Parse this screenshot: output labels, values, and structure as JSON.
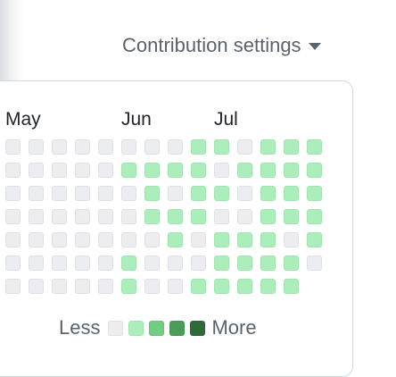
{
  "header": {
    "contribution_settings_label": "Contribution settings"
  },
  "months": [
    "May",
    "Jun",
    "Jul"
  ],
  "legend": {
    "less_label": "Less",
    "more_label": "More",
    "levels": [
      0,
      1,
      2,
      3,
      4
    ]
  },
  "colors": {
    "level_0": "#ebedf0",
    "level_1": "#aceebb",
    "level_2": "#6fce82",
    "level_3": "#4a9c5a",
    "level_4": "#2f6a3a"
  },
  "grid": {
    "rows": [
      [
        0,
        0,
        0,
        0,
        0,
        0,
        0,
        0,
        1,
        1,
        0,
        1,
        1,
        1
      ],
      [
        0,
        0,
        0,
        0,
        0,
        1,
        1,
        1,
        1,
        0,
        1,
        1,
        1,
        1
      ],
      [
        0,
        0,
        0,
        0,
        0,
        0,
        1,
        0,
        1,
        1,
        0,
        1,
        1,
        1
      ],
      [
        0,
        0,
        0,
        0,
        0,
        0,
        1,
        1,
        1,
        0,
        0,
        1,
        1,
        1
      ],
      [
        0,
        0,
        0,
        0,
        0,
        0,
        0,
        1,
        0,
        1,
        1,
        1,
        0,
        1
      ],
      [
        0,
        0,
        0,
        0,
        0,
        1,
        0,
        0,
        0,
        1,
        1,
        1,
        1,
        0
      ],
      [
        0,
        0,
        0,
        0,
        0,
        1,
        0,
        0,
        1,
        1,
        1,
        1,
        1,
        null
      ]
    ]
  }
}
